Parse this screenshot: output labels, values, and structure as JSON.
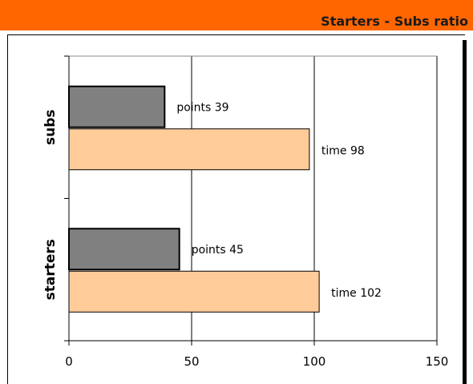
{
  "header": {
    "title": "Starters - Subs ratio"
  },
  "colors": {
    "header_bg": "#ff6600",
    "points_fill": "#808080",
    "time_fill": "#ffcc99"
  },
  "chart_data": {
    "type": "bar",
    "orientation": "horizontal",
    "title": "",
    "xlabel": "",
    "ylabel": "",
    "xlim": [
      0,
      150
    ],
    "x_ticks": [
      0,
      50,
      100,
      150
    ],
    "grid": true,
    "legend": "none",
    "categories": [
      "starters",
      "subs"
    ],
    "series": [
      {
        "key": "time",
        "values": [
          102,
          98
        ],
        "labels": [
          "time 102",
          "time 98"
        ]
      },
      {
        "key": "points",
        "values": [
          45,
          39
        ],
        "labels": [
          "points 45",
          "points 39"
        ]
      }
    ]
  }
}
